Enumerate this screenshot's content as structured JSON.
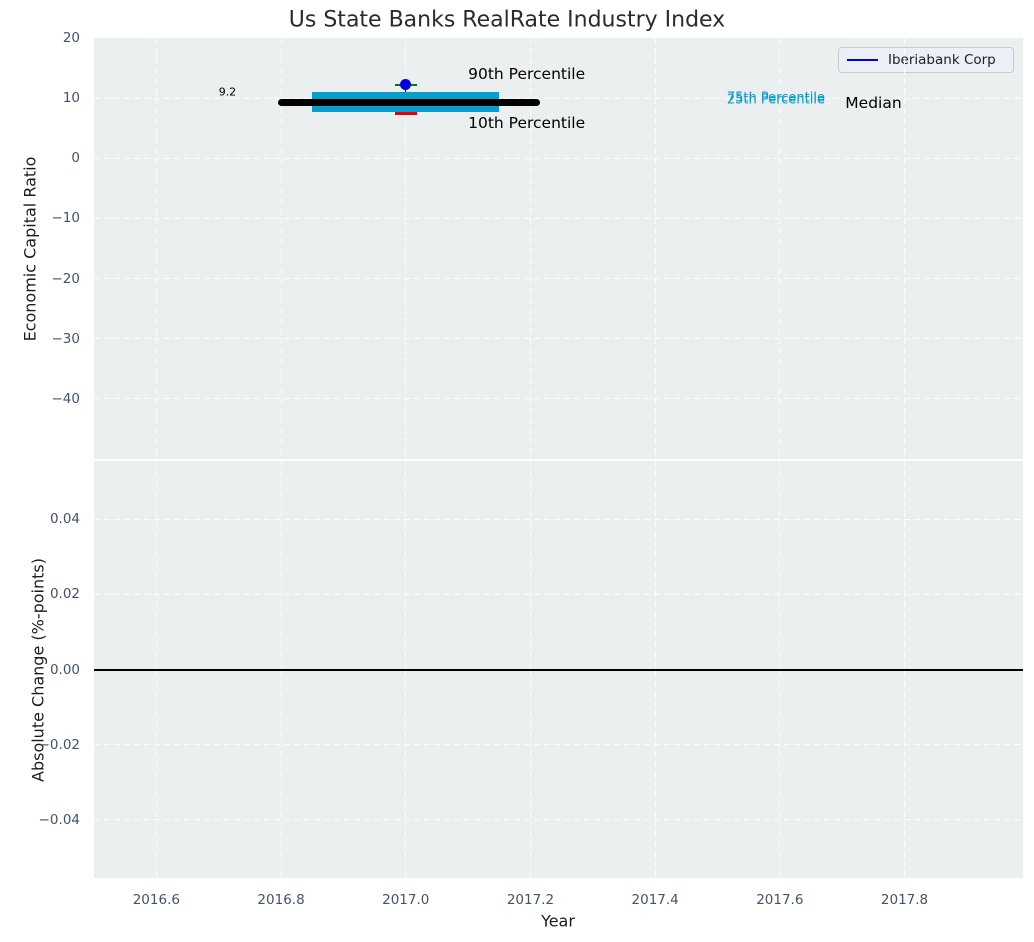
{
  "title": "Us State Banks RealRate Industry Index",
  "legend": {
    "label": "Iberiabank Corp"
  },
  "colors": {
    "series_blue": "#0000dd",
    "box_cyan": "#099dce",
    "p90_green": "#008000",
    "p10_red": "#e8000b",
    "median_black": "#000000",
    "plot_bg": "#ebeff0",
    "grid_white": "#ffffff",
    "tick_text": "#43536b"
  },
  "chart_data": [
    {
      "type": "box",
      "subplot": "top",
      "ylabel": "Economic Capital Ratio",
      "ylim": [
        -50,
        20
      ],
      "yticks": [
        20,
        10,
        0,
        -10,
        -20,
        -30,
        -40
      ],
      "ytick_decimals": 0,
      "xlim": [
        2016.5,
        2017.99
      ],
      "xticks": [
        2016.6,
        2016.8,
        2017.0,
        2017.2,
        2017.4,
        2017.6,
        2017.8
      ],
      "xtick_decimals": 1,
      "x_axis_labels_visible": false,
      "grid": "white-dashed",
      "legend_position": "upper right",
      "box": {
        "x": 2017.0,
        "p90": 12.2,
        "p75": 11.0,
        "median": 9.2,
        "p25": 7.7,
        "p10": 7.4,
        "median_x_span": [
          2016.8,
          2017.21
        ],
        "box_x_span": [
          2016.85,
          2017.15
        ],
        "cap_x_span": [
          2016.982,
          2017.018
        ]
      },
      "company_point": {
        "name": "Iberiabank Corp",
        "x": 2017.0,
        "y": 12.2
      },
      "annotations": [
        {
          "text": "9.2",
          "x": 2016.7,
          "y": 10.9,
          "color": "#000000",
          "size": 11,
          "anchor": "left"
        },
        {
          "text": "90th Percentile",
          "x": 2017.1,
          "y": 13.8,
          "color": "#000000",
          "size": 15.5,
          "anchor": "left"
        },
        {
          "text": "10th Percentile",
          "x": 2017.1,
          "y": 5.7,
          "color": "#000000",
          "size": 15.5,
          "anchor": "left"
        },
        {
          "text": "75th Percentile",
          "x": 2017.515,
          "y": 9.8,
          "color": "#099dce",
          "size": 13,
          "anchor": "left"
        },
        {
          "text": "25th Percentile",
          "x": 2017.515,
          "y": 9.45,
          "color": "#099dce",
          "size": 13,
          "anchor": "left"
        },
        {
          "text": "Median",
          "x": 2017.705,
          "y": 9.0,
          "color": "#000000",
          "size": 15.5,
          "anchor": "left"
        }
      ]
    },
    {
      "type": "line",
      "subplot": "bottom",
      "ylabel": "Absolute Change (%-points)",
      "xlabel": "Year",
      "ylim": [
        -0.0555,
        0.0555
      ],
      "yticks": [
        0.04,
        0.02,
        0,
        -0.02,
        -0.04
      ],
      "ytick_decimals": 2,
      "xlim": [
        2016.5,
        2017.99
      ],
      "xticks": [
        2016.6,
        2016.8,
        2017.0,
        2017.2,
        2017.4,
        2017.6,
        2017.8
      ],
      "xtick_decimals": 1,
      "x_axis_labels_visible": true,
      "grid": "white-dashed",
      "zero_line": 0.0,
      "series": []
    }
  ]
}
